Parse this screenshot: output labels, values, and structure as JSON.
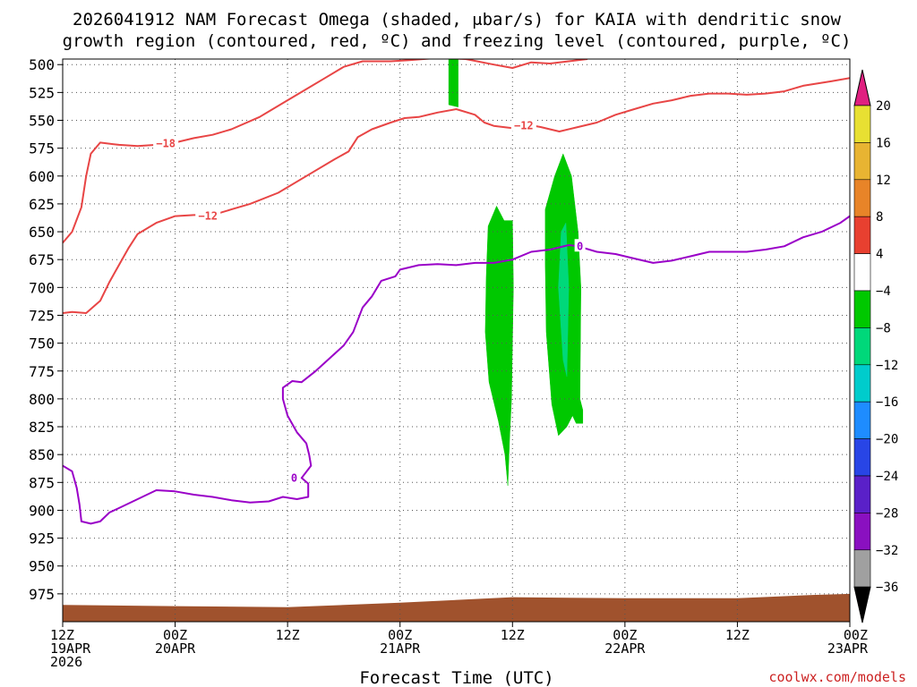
{
  "chart_data": {
    "type": "time-height cross section (shaded + contoured)",
    "title_line1": "2026041912 NAM Forecast Omega (shaded, μbar/s) for KAIA with dendritic snow",
    "title_line2": "growth region (contoured, red, ºC) and freezing level (contoured, purple, ºC)",
    "xlabel": "Forecast Time (UTC)",
    "credit": "coolwx.com/models",
    "x_unit": "hours from 2026-04-19 12Z",
    "xlim": [
      0,
      84
    ],
    "y_unit": "hPa",
    "ylim": [
      1000,
      495
    ],
    "grid": true,
    "y_ticks": [
      500,
      525,
      550,
      575,
      600,
      625,
      650,
      675,
      700,
      725,
      750,
      775,
      800,
      825,
      850,
      875,
      900,
      925,
      950,
      975
    ],
    "x_ticks": [
      {
        "hour": 0,
        "lines": [
          "12Z",
          "19APR",
          "2026"
        ]
      },
      {
        "hour": 12,
        "lines": [
          "00Z",
          "20APR"
        ]
      },
      {
        "hour": 24,
        "lines": [
          "12Z"
        ]
      },
      {
        "hour": 36,
        "lines": [
          "00Z",
          "21APR"
        ]
      },
      {
        "hour": 48,
        "lines": [
          "12Z"
        ]
      },
      {
        "hour": 60,
        "lines": [
          "00Z",
          "22APR"
        ]
      },
      {
        "hour": 72,
        "lines": [
          "12Z"
        ]
      },
      {
        "hour": 84,
        "lines": [
          "00Z",
          "23APR"
        ]
      }
    ],
    "colorbar": {
      "labels": [
        "20",
        "16",
        "12",
        "8",
        "4",
        "−4",
        "−8",
        "−12",
        "−16",
        "−20",
        "−24",
        "−28",
        "−32",
        "−36"
      ],
      "colors": [
        "#e8e032",
        "#e8b432",
        "#e88428",
        "#e84030",
        "#ffffff",
        "#00c800",
        "#00d87a",
        "#00cccc",
        "#1e8cff",
        "#2845e6",
        "#5a20c8",
        "#8a10c0",
        "#a0a0a0"
      ],
      "top_color": "#e02080",
      "bottom_color": "#000000"
    },
    "terrain": {
      "color": "#a0522d",
      "points": [
        [
          0,
          985
        ],
        [
          12,
          986
        ],
        [
          24,
          987
        ],
        [
          36,
          983
        ],
        [
          48,
          978
        ],
        [
          60,
          979
        ],
        [
          72,
          979
        ],
        [
          80,
          976
        ],
        [
          84,
          975
        ]
      ]
    },
    "omega_regions": [
      {
        "value": -4,
        "color": "#00c800",
        "points": [
          [
            41.2,
            492
          ],
          [
            42.2,
            492
          ],
          [
            42.2,
            538
          ],
          [
            41.2,
            536
          ]
        ]
      },
      {
        "value": -4,
        "color": "#00c800",
        "points": [
          [
            45.4,
            645
          ],
          [
            46.3,
            627
          ],
          [
            47.1,
            640
          ],
          [
            48.0,
            640
          ],
          [
            48.1,
            700
          ],
          [
            47.9,
            800
          ],
          [
            47.7,
            835
          ],
          [
            47.5,
            878
          ],
          [
            47.2,
            850
          ],
          [
            46.5,
            820
          ],
          [
            45.5,
            785
          ],
          [
            45.1,
            740
          ],
          [
            45.2,
            690
          ]
        ]
      },
      {
        "value": -4,
        "color": "#00c800",
        "points": [
          [
            51.5,
            630
          ],
          [
            52.5,
            600
          ],
          [
            53.4,
            580
          ],
          [
            54.3,
            600
          ],
          [
            55.0,
            650
          ],
          [
            55.3,
            700
          ],
          [
            55.2,
            800
          ],
          [
            55.5,
            810
          ],
          [
            55.5,
            822
          ],
          [
            54.8,
            822
          ],
          [
            54.4,
            815
          ],
          [
            53.8,
            825
          ],
          [
            52.9,
            833
          ],
          [
            52.2,
            805
          ],
          [
            51.6,
            740
          ],
          [
            51.5,
            680
          ]
        ]
      },
      {
        "value": -8,
        "color": "#00d87a",
        "points": [
          [
            53.2,
            650
          ],
          [
            53.7,
            642
          ],
          [
            54.0,
            700
          ],
          [
            53.8,
            780
          ],
          [
            53.4,
            765
          ],
          [
            52.9,
            700
          ]
        ]
      }
    ],
    "contours": [
      {
        "value": -18,
        "color": "#e84545",
        "label": "−18",
        "label_pos": [
          11.0,
          571
        ],
        "points": [
          [
            0,
            660
          ],
          [
            1.0,
            650
          ],
          [
            2.0,
            628
          ],
          [
            2.5,
            600
          ],
          [
            3.0,
            580
          ],
          [
            4.0,
            570
          ],
          [
            6.0,
            572
          ],
          [
            8.0,
            573
          ],
          [
            10.0,
            572
          ],
          [
            12.0,
            570
          ],
          [
            14.0,
            566
          ],
          [
            16.0,
            563
          ],
          [
            18.0,
            558
          ],
          [
            21.0,
            547
          ],
          [
            24.0,
            532
          ],
          [
            26.0,
            522
          ],
          [
            28.0,
            512
          ],
          [
            30.0,
            502
          ],
          [
            32.0,
            497
          ],
          [
            33.0,
            497
          ],
          [
            35.0,
            497
          ],
          [
            37.0,
            496
          ],
          [
            40.0,
            494
          ],
          [
            43.0,
            495
          ],
          [
            46.0,
            500
          ],
          [
            48.0,
            503
          ],
          [
            50.0,
            498
          ],
          [
            52.0,
            499
          ],
          [
            54.0,
            497
          ],
          [
            56.0,
            495
          ]
        ]
      },
      {
        "value": -12,
        "color": "#e84545",
        "label": "−12",
        "label_pos": [
          15.5,
          636
        ],
        "points": [
          [
            0,
            723
          ],
          [
            1.0,
            722
          ],
          [
            2.5,
            723
          ],
          [
            4.0,
            712
          ],
          [
            5.0,
            695
          ],
          [
            6.0,
            680
          ],
          [
            7.0,
            665
          ],
          [
            8.0,
            652
          ],
          [
            10.0,
            642
          ],
          [
            12.0,
            636
          ],
          [
            14.0,
            635
          ],
          [
            16.0,
            635
          ],
          [
            18.0,
            630
          ],
          [
            20.0,
            625
          ],
          [
            23.0,
            615
          ],
          [
            26.0,
            600
          ],
          [
            29.0,
            585
          ],
          [
            30.5,
            578
          ],
          [
            31.5,
            565
          ],
          [
            33.0,
            558
          ],
          [
            35.0,
            552
          ],
          [
            36.5,
            548
          ],
          [
            38.0,
            547
          ],
          [
            40.0,
            543
          ],
          [
            42.0,
            540
          ],
          [
            44.0,
            545
          ],
          [
            45.0,
            552
          ],
          [
            46.0,
            555
          ],
          [
            47.0,
            556
          ],
          [
            48.0,
            557
          ],
          [
            48.5,
            555
          ],
          [
            49.0,
            553
          ],
          [
            51.0,
            556
          ],
          [
            53.0,
            560
          ],
          [
            55.0,
            556
          ],
          [
            57.0,
            552
          ],
          [
            59.0,
            545
          ],
          [
            61.0,
            540
          ],
          [
            63.0,
            535
          ],
          [
            65.0,
            532
          ],
          [
            67.0,
            528
          ],
          [
            69.0,
            526
          ],
          [
            71.0,
            526
          ],
          [
            73.0,
            527
          ],
          [
            75.0,
            526
          ],
          [
            77.0,
            524
          ],
          [
            79.0,
            519
          ],
          [
            82.0,
            515
          ],
          [
            84.0,
            512
          ]
        ]
      },
      {
        "value": 0,
        "color": "#9a00c8",
        "label": "0",
        "label_pos": [
          24.7,
          871
        ],
        "points": [
          [
            0,
            860
          ],
          [
            1.0,
            865
          ],
          [
            1.5,
            880
          ],
          [
            1.8,
            895
          ],
          [
            2.0,
            910
          ],
          [
            3.0,
            912
          ],
          [
            4.0,
            910
          ],
          [
            5.0,
            902
          ],
          [
            6.0,
            898
          ],
          [
            8.0,
            890
          ],
          [
            10.0,
            882
          ],
          [
            12.0,
            883
          ],
          [
            14.0,
            886
          ],
          [
            16.0,
            888
          ],
          [
            18.0,
            891
          ],
          [
            20.0,
            893
          ],
          [
            22.0,
            892
          ],
          [
            23.5,
            888
          ],
          [
            25.0,
            890
          ],
          [
            26.2,
            888
          ],
          [
            26.2,
            876
          ],
          [
            25.5,
            871
          ],
          [
            26.5,
            860
          ],
          [
            26.3,
            850
          ],
          [
            26.0,
            840
          ],
          [
            25.0,
            830
          ],
          [
            24.0,
            815
          ],
          [
            23.5,
            800
          ],
          [
            23.5,
            790
          ],
          [
            24.5,
            784
          ],
          [
            25.5,
            785
          ],
          [
            27.0,
            775
          ],
          [
            30.0,
            752
          ],
          [
            31.0,
            740
          ],
          [
            32.0,
            718
          ],
          [
            33.0,
            708
          ],
          [
            34.0,
            694
          ],
          [
            35.5,
            690
          ],
          [
            36.0,
            684
          ],
          [
            37.0,
            682
          ],
          [
            38.0,
            680
          ],
          [
            40.0,
            679
          ],
          [
            42.0,
            680
          ],
          [
            44.0,
            678
          ],
          [
            46.0,
            678
          ],
          [
            48.0,
            675
          ],
          [
            50.0,
            668
          ],
          [
            52.0,
            666
          ],
          [
            53.0,
            664
          ],
          [
            54.0,
            662
          ],
          [
            55.0,
            663
          ],
          [
            57.0,
            668
          ],
          [
            59.0,
            670
          ],
          [
            61.0,
            674
          ],
          [
            63.0,
            678
          ],
          [
            65.0,
            676
          ],
          [
            67.0,
            672
          ],
          [
            69.0,
            668
          ],
          [
            71.0,
            668
          ],
          [
            73.0,
            668
          ],
          [
            75.0,
            666
          ],
          [
            77.0,
            663
          ],
          [
            79.0,
            655
          ],
          [
            81.0,
            650
          ],
          [
            83.0,
            642
          ],
          [
            84.0,
            636
          ]
        ]
      }
    ],
    "contour_labels_extra": [
      {
        "label": "−12",
        "color": "#e84545",
        "pos": [
          49.2,
          555
        ]
      },
      {
        "label": "0",
        "color": "#9a00c8",
        "pos": [
          55.2,
          663
        ]
      }
    ]
  }
}
